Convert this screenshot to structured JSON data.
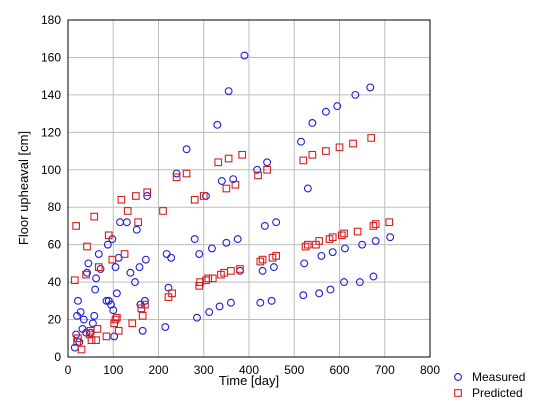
{
  "chart_data": {
    "type": "scatter",
    "title": "",
    "xlabel": "Time [day]",
    "ylabel": "Floor upheaval [cm]",
    "xlim": [
      0,
      800
    ],
    "ylim": [
      0,
      180
    ],
    "xticks": [
      0,
      100,
      200,
      300,
      400,
      500,
      600,
      700,
      800
    ],
    "yticks": [
      0,
      20,
      40,
      60,
      80,
      100,
      120,
      140,
      160,
      180
    ],
    "grid": true,
    "legend": "bottom-right, outside plot",
    "series": [
      {
        "name": "Measured",
        "marker": "circle",
        "color": "#1f1fd6",
        "points": [
          [
            15,
            5
          ],
          [
            18,
            12
          ],
          [
            20,
            22
          ],
          [
            22,
            30
          ],
          [
            25,
            8
          ],
          [
            28,
            24
          ],
          [
            32,
            15
          ],
          [
            35,
            20
          ],
          [
            40,
            13
          ],
          [
            42,
            45
          ],
          [
            45,
            50
          ],
          [
            50,
            13
          ],
          [
            55,
            18
          ],
          [
            58,
            22
          ],
          [
            60,
            36
          ],
          [
            62,
            42
          ],
          [
            68,
            55
          ],
          [
            72,
            47
          ],
          [
            85,
            30
          ],
          [
            88,
            60
          ],
          [
            90,
            30
          ],
          [
            95,
            28
          ],
          [
            98,
            63
          ],
          [
            100,
            25
          ],
          [
            102,
            11
          ],
          [
            105,
            48
          ],
          [
            108,
            34
          ],
          [
            112,
            53
          ],
          [
            115,
            72
          ],
          [
            130,
            72
          ],
          [
            138,
            45
          ],
          [
            148,
            40
          ],
          [
            152,
            68
          ],
          [
            158,
            48
          ],
          [
            160,
            28
          ],
          [
            165,
            14
          ],
          [
            170,
            30
          ],
          [
            172,
            52
          ],
          [
            175,
            86
          ],
          [
            215,
            16
          ],
          [
            218,
            55
          ],
          [
            222,
            37
          ],
          [
            228,
            53
          ],
          [
            240,
            98
          ],
          [
            262,
            111
          ],
          [
            280,
            63
          ],
          [
            285,
            21
          ],
          [
            290,
            55
          ],
          [
            305,
            86
          ],
          [
            312,
            24
          ],
          [
            318,
            58
          ],
          [
            330,
            124
          ],
          [
            335,
            27
          ],
          [
            340,
            94
          ],
          [
            350,
            61
          ],
          [
            355,
            142
          ],
          [
            360,
            29
          ],
          [
            365,
            95
          ],
          [
            375,
            63
          ],
          [
            380,
            46
          ],
          [
            390,
            161
          ],
          [
            418,
            100
          ],
          [
            425,
            29
          ],
          [
            430,
            46
          ],
          [
            435,
            70
          ],
          [
            440,
            104
          ],
          [
            450,
            30
          ],
          [
            455,
            48
          ],
          [
            460,
            72
          ],
          [
            515,
            115
          ],
          [
            520,
            33
          ],
          [
            522,
            50
          ],
          [
            530,
            90
          ],
          [
            540,
            125
          ],
          [
            555,
            34
          ],
          [
            560,
            54
          ],
          [
            570,
            131
          ],
          [
            580,
            36
          ],
          [
            585,
            56
          ],
          [
            595,
            134
          ],
          [
            610,
            40
          ],
          [
            612,
            58
          ],
          [
            635,
            140
          ],
          [
            645,
            40
          ],
          [
            650,
            60
          ],
          [
            668,
            144
          ],
          [
            675,
            43
          ],
          [
            680,
            62
          ],
          [
            712,
            64
          ]
        ]
      },
      {
        "name": "Predicted",
        "marker": "square",
        "color": "#d61f1f",
        "points": [
          [
            15,
            41
          ],
          [
            18,
            70
          ],
          [
            20,
            8
          ],
          [
            22,
            10
          ],
          [
            30,
            4
          ],
          [
            40,
            44
          ],
          [
            42,
            59
          ],
          [
            48,
            12
          ],
          [
            50,
            14
          ],
          [
            52,
            9
          ],
          [
            58,
            75
          ],
          [
            62,
            9
          ],
          [
            65,
            15
          ],
          [
            68,
            48
          ],
          [
            85,
            11
          ],
          [
            90,
            65
          ],
          [
            98,
            52
          ],
          [
            102,
            18
          ],
          [
            105,
            20
          ],
          [
            108,
            21
          ],
          [
            112,
            14
          ],
          [
            118,
            84
          ],
          [
            125,
            55
          ],
          [
            132,
            78
          ],
          [
            142,
            18
          ],
          [
            150,
            86
          ],
          [
            155,
            72
          ],
          [
            162,
            26
          ],
          [
            165,
            22
          ],
          [
            170,
            28
          ],
          [
            175,
            88
          ],
          [
            210,
            78
          ],
          [
            222,
            32
          ],
          [
            230,
            34
          ],
          [
            240,
            96
          ],
          [
            262,
            98
          ],
          [
            280,
            84
          ],
          [
            290,
            38
          ],
          [
            292,
            40
          ],
          [
            300,
            86
          ],
          [
            305,
            41
          ],
          [
            310,
            42
          ],
          [
            320,
            42
          ],
          [
            332,
            104
          ],
          [
            338,
            44
          ],
          [
            345,
            45
          ],
          [
            350,
            90
          ],
          [
            355,
            106
          ],
          [
            360,
            46
          ],
          [
            370,
            92
          ],
          [
            380,
            47
          ],
          [
            385,
            108
          ],
          [
            420,
            97
          ],
          [
            425,
            51
          ],
          [
            430,
            52
          ],
          [
            440,
            100
          ],
          [
            452,
            53
          ],
          [
            460,
            54
          ],
          [
            520,
            105
          ],
          [
            525,
            59
          ],
          [
            530,
            60
          ],
          [
            540,
            108
          ],
          [
            548,
            60
          ],
          [
            555,
            62
          ],
          [
            570,
            110
          ],
          [
            578,
            63
          ],
          [
            585,
            64
          ],
          [
            600,
            112
          ],
          [
            605,
            65
          ],
          [
            610,
            66
          ],
          [
            630,
            114
          ],
          [
            640,
            67
          ],
          [
            670,
            117
          ],
          [
            675,
            70
          ],
          [
            680,
            71
          ],
          [
            710,
            72
          ]
        ]
      }
    ]
  }
}
